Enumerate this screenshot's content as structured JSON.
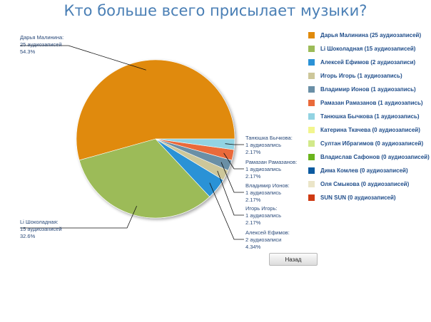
{
  "chart_data": {
    "type": "pie",
    "title": "Кто больше всего присылает музыки?",
    "slices": [
      {
        "label": "Дарья Малинина",
        "value": 25,
        "legend": "Дарья Малинина (25 аудиозаписей)",
        "color": "#e08a0b",
        "callout": [
          "Дарья Малинина:",
          "25 аудиозаписей",
          "54.3%"
        ]
      },
      {
        "label": "Li Шоколадная",
        "value": 15,
        "legend": "Li Шоколадная (15 аудиозаписей)",
        "color": "#9cbb58",
        "callout": [
          "Li Шоколадная:",
          "15 аудиозаписей",
          "32.6%"
        ]
      },
      {
        "label": "Алексей Ефимов",
        "value": 2,
        "legend": "Алексей Ефимов (2 аудиозаписи)",
        "color": "#2b92d6",
        "callout": [
          "Алексей Ефимов:",
          "2 аудиозаписи",
          "4.34%"
        ]
      },
      {
        "label": "Игорь Игорь",
        "value": 1,
        "legend": "Игорь Игорь (1 аудиозапись)",
        "color": "#cdc79a",
        "callout": [
          "Игорь Игорь:",
          "1 аудиозапись",
          "2.17%"
        ]
      },
      {
        "label": "Владимир Ионов",
        "value": 1,
        "legend": "Владимир Ионов (1 аудиозапись)",
        "color": "#6a8fa6",
        "callout": [
          "Владимир Ионов:",
          "1 аудиозапись",
          "2.17%"
        ]
      },
      {
        "label": "Рамазан Рамазанов",
        "value": 1,
        "legend": "Рамазан Рамазанов (1 аудиозапись)",
        "color": "#ea6a3a",
        "callout": [
          "Рамазан Рамазанов:",
          "1 аудиозапись",
          "2.17%"
        ]
      },
      {
        "label": "Танюшка Бычкова",
        "value": 1,
        "legend": "Танюшка Бычкова (1 аудиозапись)",
        "color": "#92d3e2",
        "callout": [
          "Танюшка Бычкова:",
          "1 аудиозапись",
          "2.17%"
        ]
      },
      {
        "label": "Катерина Ткачева",
        "value": 0,
        "legend": "Катерина Ткачева (0 аудиозаписей)",
        "color": "#f2f58f"
      },
      {
        "label": "Султан Ибрагимов",
        "value": 0,
        "legend": "Султан Ибрагимов (0 аудиозаписей)",
        "color": "#d2e98a"
      },
      {
        "label": "Владислав Сафонов",
        "value": 0,
        "legend": "Владислав Сафонов (0 аудиозаписей)",
        "color": "#6ab41c"
      },
      {
        "label": "Дима Комлев",
        "value": 0,
        "legend": "Дима Комлев (0 аудиозаписей)",
        "color": "#0b5aa0"
      },
      {
        "label": "Оля Смыкова",
        "value": 0,
        "legend": "Оля Смыкова (0 аудиозаписей)",
        "color": "#ebe5c8"
      },
      {
        "label": "SUN SUN",
        "value": 0,
        "legend": "SUN SUN (0 аудиозаписей)",
        "color": "#cf3a12"
      }
    ],
    "legend_position": "right"
  },
  "buttons": {
    "back_label": "Назад"
  }
}
